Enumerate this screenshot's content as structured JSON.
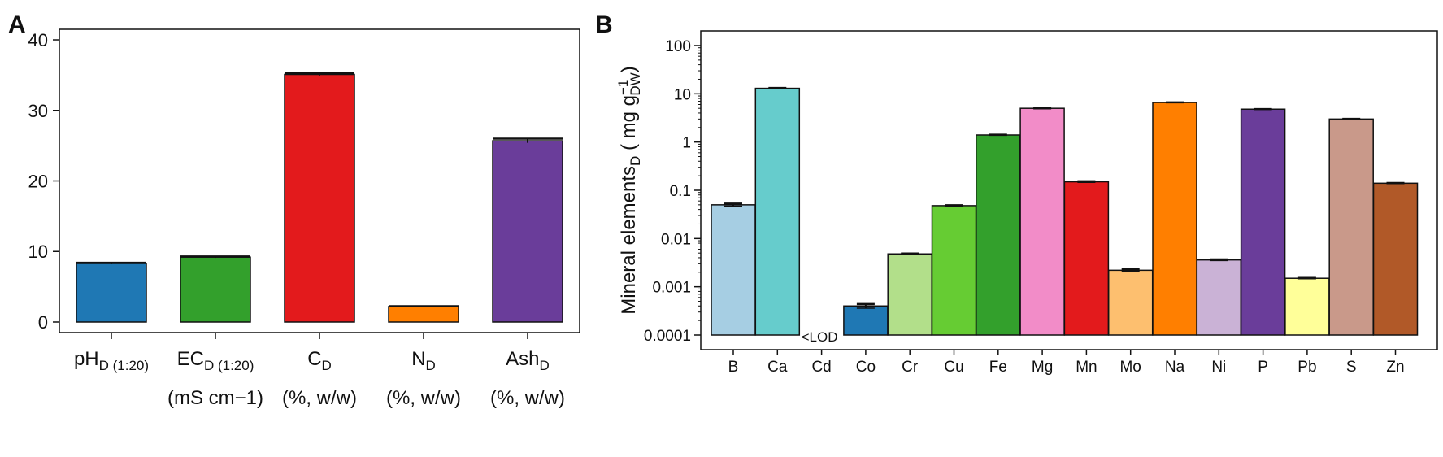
{
  "chart_data": [
    {
      "panel": "A",
      "type": "bar",
      "categories": [
        {
          "main": "pH",
          "sub": "D (1:20)",
          "unit": ""
        },
        {
          "main": "EC",
          "sub": "D (1:20)",
          "unit": "(mS cm−1)"
        },
        {
          "main": "C",
          "sub": "D",
          "unit": "(%, w/w)"
        },
        {
          "main": "N",
          "sub": "D",
          "unit": "(%, w/w)"
        },
        {
          "main": "Ash",
          "sub": "D",
          "unit": "(%, w/w)"
        }
      ],
      "values": [
        8.3,
        9.2,
        35.1,
        2.2,
        25.7
      ],
      "errors": [
        0.1,
        0.1,
        0.15,
        0.05,
        0.3
      ],
      "colors": [
        "#1f78b4",
        "#33a02c",
        "#e31a1c",
        "#ff7f00",
        "#6a3d9a"
      ],
      "ylim": [
        -1.5,
        41.5
      ],
      "yticks": [
        0,
        10,
        20,
        30,
        40
      ],
      "title": "",
      "xlabel": "",
      "ylabel": ""
    },
    {
      "panel": "B",
      "type": "bar",
      "yscale": "log",
      "categories": [
        "B",
        "Ca",
        "Cd",
        "Co",
        "Cr",
        "Cu",
        "Fe",
        "Mg",
        "Mn",
        "Mo",
        "Na",
        "Ni",
        "P",
        "Pb",
        "S",
        "Zn"
      ],
      "values": [
        0.05,
        13,
        null,
        0.0004,
        0.0048,
        0.048,
        1.4,
        5.0,
        0.15,
        0.0022,
        6.6,
        0.0036,
        4.8,
        0.0015,
        3.0,
        0.14
      ],
      "errors": [
        0.003,
        0.2,
        null,
        4e-05,
        0.0001,
        0.001,
        0.02,
        0.1,
        0.004,
        0.0001,
        0.05,
        0.0001,
        0.03,
        3e-05,
        0.03,
        0.002
      ],
      "colors": [
        "#a6cee3",
        "#66cccc",
        "#ffffff",
        "#1f78b4",
        "#b2df8a",
        "#66cc33",
        "#33a02c",
        "#f28cc8",
        "#e31a1c",
        "#fdbf6f",
        "#ff7f00",
        "#cab2d6",
        "#6a3d9a",
        "#ffff99",
        "#c9998a",
        "#b15928"
      ],
      "ylim": [
        0.0001,
        100
      ],
      "ytick_labels": [
        "0.0001",
        "0.001",
        "0.01",
        "0.1",
        "1",
        "10",
        "100"
      ],
      "annotation": "<LOD",
      "ylabel_main": "Mineral  elements",
      "ylabel_sub": "D",
      "ylabel_unit_open": " ( mg g",
      "ylabel_unit_sup": "−1",
      "ylabel_unit_sub": "DW",
      "ylabel_unit_close": ")",
      "title": "",
      "xlabel": ""
    }
  ]
}
